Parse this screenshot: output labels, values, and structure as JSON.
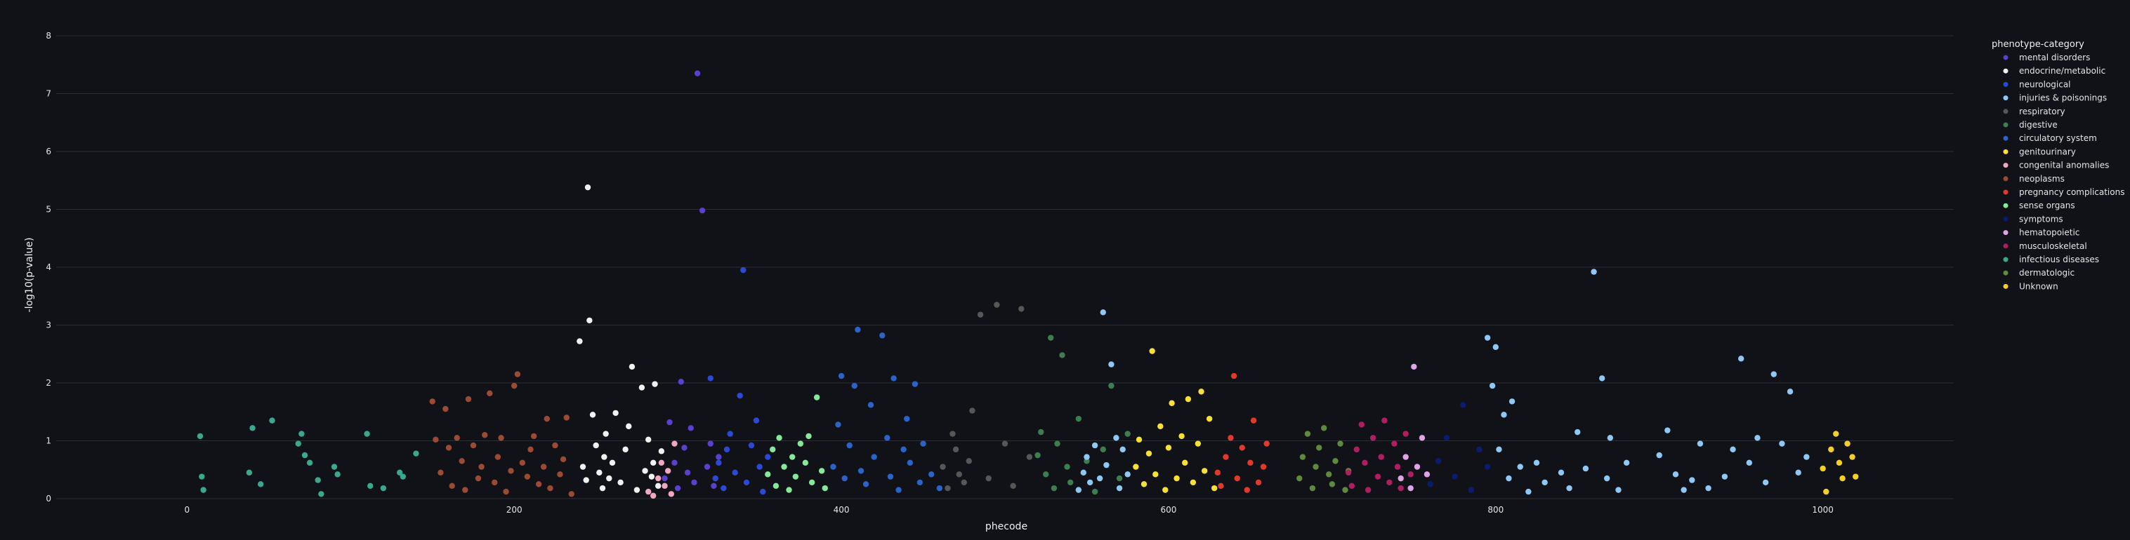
{
  "chart_data": {
    "type": "scatter",
    "title": "",
    "xlabel": "phecode",
    "ylabel": "-log10(p-value)",
    "xlim": [
      -80,
      1080
    ],
    "ylim": [
      0,
      8
    ],
    "xticks": [
      0,
      200,
      400,
      600,
      800,
      1000
    ],
    "yticks": [
      0,
      1,
      2,
      3,
      4,
      5,
      6,
      7,
      8
    ],
    "grid": true,
    "background": "#111217",
    "gridColor": "#2b2e35",
    "legend": {
      "title": "phenotype-category",
      "placement": "right",
      "entries": [
        {
          "name": "mental disorders",
          "color": "#5a3fd0"
        },
        {
          "name": "endocrine/metabolic",
          "color": "#f1f1f1"
        },
        {
          "name": "neurological",
          "color": "#2c49d6"
        },
        {
          "name": "injuries & poisonings",
          "color": "#8fc8f5"
        },
        {
          "name": "respiratory",
          "color": "#575757"
        },
        {
          "name": "digestive",
          "color": "#3d7d4f"
        },
        {
          "name": "circulatory system",
          "color": "#2a63c9"
        },
        {
          "name": "genitourinary",
          "color": "#f7e135"
        },
        {
          "name": "congenital anomalies",
          "color": "#f2a7c0"
        },
        {
          "name": "neoplasms",
          "color": "#9b4b33"
        },
        {
          "name": "pregnancy complications",
          "color": "#e03a2c"
        },
        {
          "name": "sense organs",
          "color": "#86e89b"
        },
        {
          "name": "symptoms",
          "color": "#0b1c70"
        },
        {
          "name": "hematopoietic",
          "color": "#e0a3e6"
        },
        {
          "name": "musculoskeletal",
          "color": "#b01e62"
        },
        {
          "name": "infectious diseases",
          "color": "#3aa88f"
        },
        {
          "name": "dermatologic",
          "color": "#5e8a3e"
        },
        {
          "name": "Unknown",
          "color": "#f4cf2a"
        }
      ]
    },
    "series": [
      {
        "name": "infectious diseases",
        "x": [
          8,
          9,
          10,
          38,
          40,
          45,
          52,
          68,
          70,
          72,
          75,
          80,
          82,
          90,
          92,
          110,
          112,
          120,
          130,
          132,
          140
        ],
        "y": [
          1.08,
          0.38,
          0.15,
          0.45,
          1.22,
          0.25,
          1.35,
          0.95,
          1.12,
          0.75,
          0.62,
          0.32,
          0.08,
          0.55,
          0.42,
          1.12,
          0.22,
          0.18,
          0.45,
          0.38,
          0.78
        ]
      },
      {
        "name": "neoplasms",
        "x": [
          150,
          152,
          155,
          158,
          160,
          162,
          165,
          168,
          170,
          172,
          175,
          178,
          180,
          182,
          185,
          188,
          190,
          192,
          195,
          198,
          200,
          202,
          205,
          208,
          210,
          212,
          215,
          218,
          220,
          222,
          225,
          228,
          230,
          232,
          235
        ],
        "y": [
          1.68,
          1.02,
          0.45,
          1.55,
          0.88,
          0.22,
          1.05,
          0.65,
          0.15,
          1.72,
          0.92,
          0.35,
          0.55,
          1.1,
          1.82,
          0.28,
          0.72,
          1.05,
          0.12,
          0.48,
          1.95,
          2.15,
          0.62,
          0.38,
          0.85,
          1.08,
          0.25,
          0.55,
          1.38,
          0.18,
          0.92,
          0.42,
          0.68,
          1.4,
          0.08
        ]
      },
      {
        "name": "endocrine/metabolic",
        "x": [
          240,
          242,
          244,
          245,
          246,
          248,
          250,
          252,
          254,
          255,
          256,
          258,
          260,
          262,
          265,
          268,
          270,
          272,
          275,
          278,
          280,
          282,
          284,
          285,
          286,
          288,
          290
        ],
        "y": [
          2.72,
          0.55,
          0.32,
          5.38,
          3.08,
          1.45,
          0.92,
          0.45,
          0.18,
          0.72,
          1.12,
          0.35,
          0.62,
          1.48,
          0.28,
          0.85,
          1.25,
          2.28,
          0.15,
          1.92,
          0.48,
          1.02,
          0.38,
          0.62,
          1.98,
          0.22,
          0.82
        ]
      },
      {
        "name": "congenital anomalies",
        "x": [
          282,
          285,
          288,
          290,
          292,
          294,
          296,
          298
        ],
        "y": [
          0.12,
          0.05,
          0.35,
          0.62,
          0.22,
          0.48,
          0.08,
          0.95
        ]
      },
      {
        "name": "mental disorders",
        "x": [
          292,
          295,
          298,
          300,
          302,
          304,
          306,
          308,
          310,
          312,
          315,
          318,
          320,
          322,
          325
        ],
        "y": [
          0.35,
          1.32,
          0.62,
          0.18,
          2.02,
          0.88,
          0.45,
          1.22,
          0.28,
          7.35,
          4.98,
          0.55,
          0.95,
          0.22,
          0.72
        ]
      },
      {
        "name": "neurological",
        "x": [
          320,
          323,
          325,
          328,
          330,
          332,
          335,
          338,
          340,
          342,
          345,
          348,
          350,
          352,
          355
        ],
        "y": [
          2.08,
          0.35,
          0.62,
          0.18,
          0.85,
          1.12,
          0.45,
          1.78,
          3.95,
          0.28,
          0.92,
          1.35,
          0.55,
          0.12,
          0.72
        ]
      },
      {
        "name": "sense organs",
        "x": [
          355,
          358,
          360,
          362,
          365,
          368,
          370,
          372,
          375,
          378,
          380,
          382,
          385,
          388,
          390
        ],
        "y": [
          0.42,
          0.85,
          0.22,
          1.05,
          0.55,
          0.15,
          0.72,
          0.38,
          0.95,
          0.62,
          1.08,
          0.28,
          1.75,
          0.48,
          0.18
        ]
      },
      {
        "name": "circulatory system",
        "x": [
          395,
          398,
          400,
          402,
          405,
          408,
          410,
          412,
          415,
          418,
          420,
          425,
          428,
          430,
          432,
          435,
          438,
          440,
          442,
          445,
          448,
          450,
          455,
          460
        ],
        "y": [
          0.55,
          1.28,
          2.12,
          0.35,
          0.92,
          1.95,
          2.92,
          0.48,
          0.25,
          1.62,
          0.72,
          2.82,
          1.05,
          0.38,
          2.08,
          0.15,
          0.85,
          1.38,
          0.62,
          1.98,
          0.28,
          0.95,
          0.42,
          0.18
        ]
      },
      {
        "name": "respiratory",
        "x": [
          462,
          465,
          468,
          470,
          472,
          475,
          478,
          480,
          485,
          490,
          495,
          500,
          505,
          510,
          515
        ],
        "y": [
          0.55,
          0.18,
          1.12,
          0.85,
          0.42,
          0.28,
          0.65,
          1.52,
          3.18,
          0.35,
          3.35,
          0.95,
          0.22,
          3.28,
          0.72
        ]
      },
      {
        "name": "digestive",
        "x": [
          520,
          522,
          525,
          528,
          530,
          532,
          535,
          538,
          540,
          545,
          550,
          555,
          560,
          565,
          570,
          575
        ],
        "y": [
          0.75,
          1.15,
          0.42,
          2.78,
          0.18,
          0.95,
          2.48,
          0.55,
          0.28,
          1.38,
          0.65,
          0.12,
          0.85,
          1.95,
          0.35,
          1.12
        ]
      },
      {
        "name": "injuries & poisonings",
        "x": [
          545,
          548,
          550,
          552,
          555,
          558,
          560,
          562,
          565,
          568,
          570,
          572,
          575
        ],
        "y": [
          0.15,
          0.45,
          0.72,
          0.28,
          0.92,
          0.35,
          3.22,
          0.58,
          2.32,
          1.05,
          0.18,
          0.85,
          0.42
        ]
      },
      {
        "name": "genitourinary",
        "x": [
          580,
          582,
          585,
          588,
          590,
          592,
          595,
          598,
          600,
          602,
          605,
          608,
          610,
          612,
          615,
          618,
          620,
          622,
          625,
          628
        ],
        "y": [
          0.55,
          1.02,
          0.25,
          0.78,
          2.55,
          0.42,
          1.25,
          0.15,
          0.88,
          1.65,
          0.35,
          1.08,
          0.62,
          1.72,
          0.28,
          0.95,
          1.85,
          0.48,
          1.38,
          0.18
        ]
      },
      {
        "name": "pregnancy complications",
        "x": [
          630,
          632,
          635,
          638,
          640,
          642,
          645,
          648,
          650,
          652,
          655,
          658,
          660
        ],
        "y": [
          0.45,
          0.22,
          0.72,
          1.05,
          2.12,
          0.35,
          0.88,
          0.15,
          0.62,
          1.35,
          0.28,
          0.55,
          0.95
        ]
      },
      {
        "name": "dermatologic",
        "x": [
          680,
          682,
          685,
          688,
          690,
          692,
          695,
          698,
          700,
          702,
          705,
          708,
          710
        ],
        "y": [
          0.35,
          0.72,
          1.12,
          0.18,
          0.55,
          0.88,
          1.22,
          0.42,
          0.25,
          0.65,
          0.95,
          0.15,
          0.48
        ]
      },
      {
        "name": "musculoskeletal",
        "x": [
          710,
          712,
          715,
          718,
          720,
          722,
          725,
          728,
          730,
          732,
          735,
          738,
          740,
          742,
          745,
          748
        ],
        "y": [
          0.45,
          0.22,
          0.85,
          1.28,
          0.62,
          0.15,
          1.05,
          0.38,
          0.72,
          1.35,
          0.28,
          0.95,
          0.55,
          0.18,
          1.12,
          0.42
        ]
      },
      {
        "name": "hematopoietic",
        "x": [
          742,
          745,
          748,
          750,
          752,
          755,
          758
        ],
        "y": [
          0.35,
          0.72,
          0.18,
          2.28,
          0.55,
          1.05,
          0.42
        ]
      },
      {
        "name": "symptoms",
        "x": [
          760,
          765,
          770,
          775,
          780,
          785,
          790,
          795
        ],
        "y": [
          0.25,
          0.65,
          1.05,
          0.38,
          1.62,
          0.15,
          0.85,
          0.55
        ]
      },
      {
        "name": "injuries & poisonings",
        "x": [
          795,
          798,
          800,
          802,
          805,
          808,
          810,
          815,
          820,
          825,
          830,
          840,
          845,
          850,
          855,
          860,
          865,
          868,
          870,
          875,
          880,
          900,
          905,
          910,
          915,
          920,
          925,
          930,
          940,
          945,
          950,
          955,
          960,
          965,
          970,
          975,
          980,
          985,
          990
        ],
        "y": [
          2.78,
          1.95,
          2.62,
          0.85,
          1.45,
          0.35,
          1.68,
          0.55,
          0.12,
          0.62,
          0.28,
          0.45,
          0.18,
          1.15,
          0.52,
          3.92,
          2.08,
          0.35,
          1.05,
          0.15,
          0.62,
          0.75,
          1.18,
          0.42,
          0.15,
          0.32,
          0.95,
          0.18,
          0.38,
          0.85,
          2.42,
          0.62,
          1.05,
          0.28,
          2.15,
          0.95,
          1.85,
          0.45,
          0.72
        ]
      },
      {
        "name": "Unknown",
        "x": [
          1000,
          1002,
          1005,
          1008,
          1010,
          1012,
          1015,
          1018,
          1020
        ],
        "y": [
          0.52,
          0.12,
          0.85,
          1.12,
          0.62,
          0.35,
          0.95,
          0.72,
          0.38
        ]
      }
    ]
  }
}
